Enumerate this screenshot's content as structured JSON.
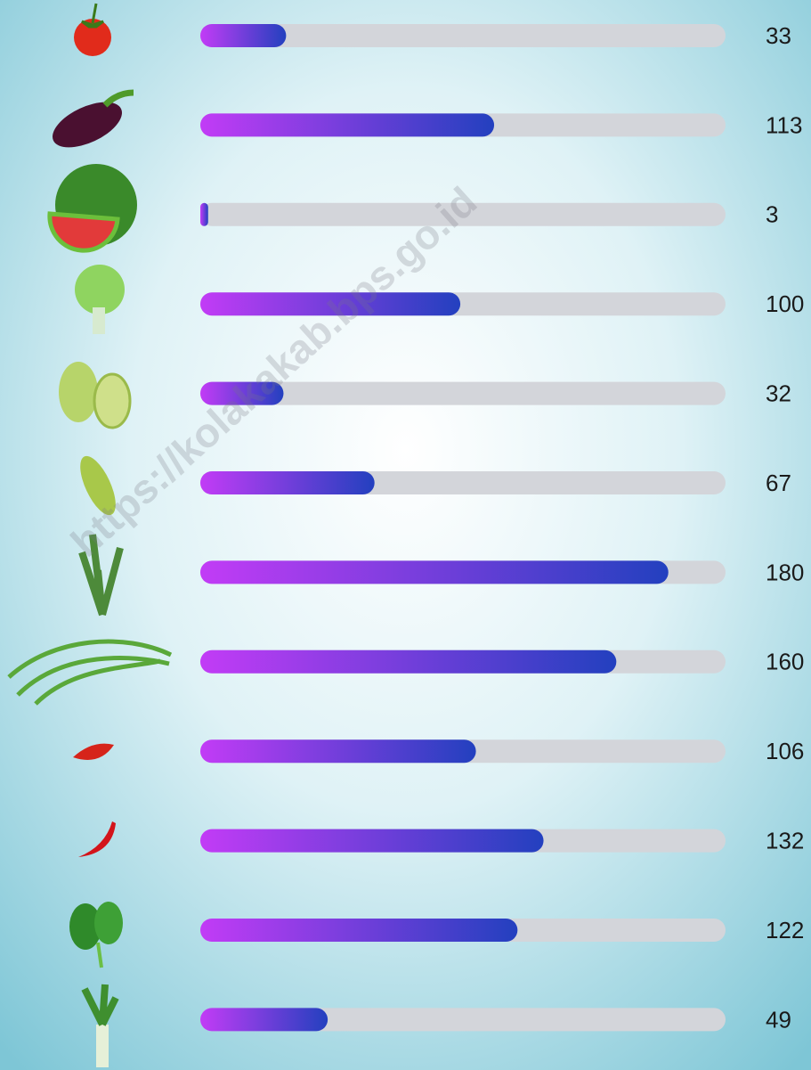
{
  "chart_data": {
    "type": "bar",
    "orientation": "horizontal",
    "values": [
      33,
      113,
      3,
      100,
      32,
      67,
      180,
      160,
      106,
      132,
      122,
      49
    ],
    "xlim": [
      0,
      202
    ],
    "colors": {
      "start": "#c23cf6",
      "end": "#2340bf",
      "track": "#d3d5da"
    },
    "watermark": "https://kolakakab.bps.go.id"
  }
}
